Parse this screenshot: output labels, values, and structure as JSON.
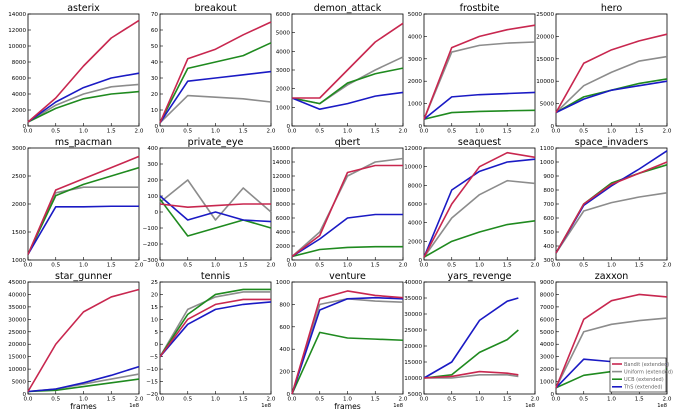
{
  "colors": {
    "bandit": "#c8274f",
    "uniform": "#8c8c8c",
    "ucb": "#1f8a1f",
    "ths": "#1a1ac4"
  },
  "legend": [
    "Bandit (extended)",
    "Uniform (extended)",
    "UCB (extended)",
    "ThS (extended)"
  ],
  "chart_data": [
    {
      "type": "line",
      "title": "asterix",
      "x": [
        0,
        0.5,
        1.0,
        1.5,
        2.0
      ],
      "ylim": [
        0,
        14000
      ],
      "yticks": [
        0,
        2000,
        4000,
        6000,
        8000,
        10000,
        12000,
        14000
      ],
      "xlabel": "",
      "x_exponent": "",
      "series": [
        {
          "key": "bandit",
          "values": [
            500,
            3500,
            7500,
            11000,
            13200
          ]
        },
        {
          "key": "uniform",
          "values": [
            500,
            2600,
            4000,
            4900,
            5200
          ]
        },
        {
          "key": "ucb",
          "values": [
            500,
            2200,
            3400,
            4000,
            4300
          ]
        },
        {
          "key": "ths",
          "values": [
            500,
            3000,
            4800,
            6000,
            6600
          ]
        }
      ]
    },
    {
      "type": "line",
      "title": "breakout",
      "x": [
        0,
        0.5,
        1.0,
        1.5,
        2.0
      ],
      "ylim": [
        0,
        70
      ],
      "yticks": [
        0,
        10,
        20,
        30,
        40,
        50,
        60,
        70
      ],
      "xlabel": "",
      "x_exponent": "",
      "series": [
        {
          "key": "bandit",
          "values": [
            2,
            42,
            48,
            57,
            65
          ]
        },
        {
          "key": "uniform",
          "values": [
            2,
            19,
            18,
            17,
            15
          ]
        },
        {
          "key": "ucb",
          "values": [
            2,
            36,
            40,
            44,
            52
          ]
        },
        {
          "key": "ths",
          "values": [
            2,
            28,
            30,
            32,
            34
          ]
        }
      ]
    },
    {
      "type": "line",
      "title": "demon_attack",
      "x": [
        0,
        0.5,
        1.0,
        1.5,
        2.0
      ],
      "ylim": [
        0,
        6000
      ],
      "yticks": [
        0,
        1000,
        2000,
        3000,
        4000,
        5000,
        6000
      ],
      "xlabel": "",
      "x_exponent": "",
      "series": [
        {
          "key": "bandit",
          "values": [
            1500,
            1500,
            3000,
            4500,
            5500
          ]
        },
        {
          "key": "uniform",
          "values": [
            1500,
            1200,
            2200,
            3000,
            3700
          ]
        },
        {
          "key": "ucb",
          "values": [
            1500,
            1200,
            2300,
            2800,
            3100
          ]
        },
        {
          "key": "ths",
          "values": [
            1500,
            900,
            1200,
            1600,
            1800
          ]
        }
      ]
    },
    {
      "type": "line",
      "title": "frostbite",
      "x": [
        0,
        0.5,
        1.0,
        1.5,
        2.0
      ],
      "ylim": [
        0,
        5000
      ],
      "yticks": [
        0,
        1000,
        2000,
        3000,
        4000,
        5000
      ],
      "xlabel": "",
      "x_exponent": "",
      "series": [
        {
          "key": "bandit",
          "values": [
            300,
            3500,
            4000,
            4300,
            4500
          ]
        },
        {
          "key": "uniform",
          "values": [
            300,
            3300,
            3600,
            3700,
            3750
          ]
        },
        {
          "key": "ucb",
          "values": [
            300,
            600,
            650,
            680,
            700
          ]
        },
        {
          "key": "ths",
          "values": [
            300,
            1300,
            1400,
            1450,
            1500
          ]
        }
      ]
    },
    {
      "type": "line",
      "title": "hero",
      "x": [
        0,
        0.5,
        1.0,
        1.5,
        2.0
      ],
      "ylim": [
        0,
        25000
      ],
      "yticks": [
        0,
        5000,
        10000,
        15000,
        20000,
        25000
      ],
      "xlabel": "",
      "x_exponent": "",
      "series": [
        {
          "key": "bandit",
          "values": [
            3000,
            14000,
            17000,
            19000,
            20500
          ]
        },
        {
          "key": "uniform",
          "values": [
            3000,
            9000,
            12000,
            14500,
            15500
          ]
        },
        {
          "key": "ucb",
          "values": [
            3000,
            6500,
            8000,
            9500,
            10500
          ]
        },
        {
          "key": "ths",
          "values": [
            3000,
            6000,
            8000,
            9000,
            10000
          ]
        }
      ]
    },
    {
      "type": "line",
      "title": "ms_pacman",
      "x": [
        0,
        0.5,
        1.0,
        1.5,
        2.0
      ],
      "ylim": [
        1000,
        3000
      ],
      "yticks": [
        1000,
        1500,
        2000,
        2500,
        3000
      ],
      "xlabel": "",
      "x_exponent": "",
      "series": [
        {
          "key": "bandit",
          "values": [
            1100,
            2250,
            2450,
            2650,
            2850
          ]
        },
        {
          "key": "uniform",
          "values": [
            1100,
            2200,
            2300,
            2300,
            2300
          ]
        },
        {
          "key": "ucb",
          "values": [
            1100,
            2150,
            2350,
            2500,
            2650
          ]
        },
        {
          "key": "ths",
          "values": [
            1100,
            1950,
            1950,
            1960,
            1960
          ]
        }
      ]
    },
    {
      "type": "line",
      "title": "private_eye",
      "x": [
        0,
        0.5,
        1.0,
        1.5,
        2.0
      ],
      "ylim": [
        -300,
        400
      ],
      "yticks": [
        -300,
        -200,
        -100,
        0,
        100,
        200,
        300,
        400
      ],
      "xlabel": "",
      "x_exponent": "",
      "series": [
        {
          "key": "bandit",
          "values": [
            50,
            30,
            40,
            50,
            50
          ]
        },
        {
          "key": "uniform",
          "values": [
            60,
            200,
            -50,
            150,
            0
          ]
        },
        {
          "key": "ucb",
          "values": [
            80,
            -150,
            -100,
            -50,
            -100
          ]
        },
        {
          "key": "ths",
          "values": [
            100,
            -50,
            0,
            -50,
            -60
          ]
        }
      ]
    },
    {
      "type": "line",
      "title": "qbert",
      "x": [
        0,
        0.5,
        1.0,
        1.5,
        2.0
      ],
      "ylim": [
        0,
        16000
      ],
      "yticks": [
        0,
        2000,
        4000,
        6000,
        8000,
        10000,
        12000,
        14000,
        16000
      ],
      "xlabel": "",
      "x_exponent": "",
      "series": [
        {
          "key": "bandit",
          "values": [
            500,
            3500,
            12500,
            13500,
            13500
          ]
        },
        {
          "key": "uniform",
          "values": [
            500,
            4000,
            12000,
            14000,
            14500
          ]
        },
        {
          "key": "ucb",
          "values": [
            500,
            1500,
            1800,
            1900,
            1900
          ]
        },
        {
          "key": "ths",
          "values": [
            500,
            3000,
            6000,
            6500,
            6500
          ]
        }
      ]
    },
    {
      "type": "line",
      "title": "seaquest",
      "x": [
        0,
        0.5,
        1.0,
        1.5,
        2.0
      ],
      "ylim": [
        0,
        12000
      ],
      "yticks": [
        0,
        2000,
        4000,
        6000,
        8000,
        10000,
        12000
      ],
      "xlabel": "",
      "x_exponent": "",
      "series": [
        {
          "key": "bandit",
          "values": [
            300,
            6000,
            10000,
            11500,
            11000
          ]
        },
        {
          "key": "uniform",
          "values": [
            300,
            4500,
            7000,
            8500,
            8200
          ]
        },
        {
          "key": "ucb",
          "values": [
            300,
            2000,
            3000,
            3800,
            4200
          ]
        },
        {
          "key": "ths",
          "values": [
            300,
            7500,
            9500,
            10500,
            10800
          ]
        }
      ]
    },
    {
      "type": "line",
      "title": "space_invaders",
      "x": [
        0,
        0.5,
        1.0,
        1.5,
        2.0
      ],
      "ylim": [
        300,
        1100
      ],
      "yticks": [
        300,
        400,
        500,
        600,
        700,
        800,
        900,
        1000,
        1100
      ],
      "xlabel": "",
      "x_exponent": "",
      "series": [
        {
          "key": "bandit",
          "values": [
            350,
            700,
            840,
            920,
            1000
          ]
        },
        {
          "key": "uniform",
          "values": [
            350,
            650,
            710,
            750,
            780
          ]
        },
        {
          "key": "ucb",
          "values": [
            350,
            700,
            850,
            920,
            980
          ]
        },
        {
          "key": "ths",
          "values": [
            350,
            690,
            830,
            950,
            1080
          ]
        }
      ]
    },
    {
      "type": "line",
      "title": "star_gunner",
      "x": [
        0,
        0.5,
        1.0,
        1.5,
        2.0
      ],
      "ylim": [
        0,
        45000
      ],
      "yticks": [
        0,
        5000,
        10000,
        15000,
        20000,
        25000,
        30000,
        35000,
        40000,
        45000
      ],
      "xlabel": "frames",
      "x_exponent": "1e8",
      "series": [
        {
          "key": "bandit",
          "values": [
            1000,
            20000,
            33000,
            39000,
            42000
          ]
        },
        {
          "key": "uniform",
          "values": [
            1000,
            2000,
            4000,
            6000,
            8000
          ]
        },
        {
          "key": "ucb",
          "values": [
            1000,
            1500,
            3000,
            4500,
            6000
          ]
        },
        {
          "key": "ths",
          "values": [
            1000,
            2000,
            4500,
            7500,
            11000
          ]
        }
      ]
    },
    {
      "type": "line",
      "title": "tennis",
      "x": [
        0,
        0.5,
        1.0,
        1.5,
        2.0
      ],
      "ylim": [
        -20,
        25
      ],
      "yticks": [
        -20,
        -15,
        -10,
        -5,
        0,
        5,
        10,
        15,
        20,
        25
      ],
      "xlabel": "",
      "x_exponent": "1e8",
      "series": [
        {
          "key": "bandit",
          "values": [
            -5,
            10,
            16,
            18,
            18
          ]
        },
        {
          "key": "uniform",
          "values": [
            -5,
            14,
            19,
            21,
            21
          ]
        },
        {
          "key": "ucb",
          "values": [
            -5,
            12,
            20,
            22,
            22
          ]
        },
        {
          "key": "ths",
          "values": [
            -5,
            8,
            14,
            16,
            17
          ]
        }
      ]
    },
    {
      "type": "line",
      "title": "venture",
      "x": [
        0,
        0.5,
        1.0,
        1.5,
        2.0
      ],
      "ylim": [
        0,
        1000
      ],
      "yticks": [
        0,
        200,
        400,
        600,
        800,
        1000
      ],
      "xlabel": "frames",
      "x_exponent": "1e8",
      "series": [
        {
          "key": "bandit",
          "values": [
            0,
            850,
            920,
            880,
            860
          ]
        },
        {
          "key": "uniform",
          "values": [
            0,
            800,
            850,
            830,
            820
          ]
        },
        {
          "key": "ucb",
          "values": [
            0,
            550,
            500,
            490,
            480
          ]
        },
        {
          "key": "ths",
          "values": [
            0,
            750,
            850,
            860,
            850
          ]
        }
      ]
    },
    {
      "type": "line",
      "title": "yars_revenge",
      "x": [
        0,
        0.5,
        1.0,
        1.5,
        1.7
      ],
      "ylim": [
        5000,
        40000
      ],
      "yticks": [
        5000,
        10000,
        15000,
        20000,
        25000,
        30000,
        35000,
        40000
      ],
      "xlabel": "",
      "x_exponent": "1e8",
      "series": [
        {
          "key": "bandit",
          "values": [
            10000,
            10500,
            12000,
            11500,
            11000
          ]
        },
        {
          "key": "uniform",
          "values": [
            10000,
            10000,
            11000,
            11000,
            10500
          ]
        },
        {
          "key": "ucb",
          "values": [
            10000,
            11000,
            18000,
            22000,
            25000
          ]
        },
        {
          "key": "ths",
          "values": [
            10000,
            15000,
            28000,
            34000,
            35000
          ]
        }
      ]
    },
    {
      "type": "line",
      "title": "zaxxon",
      "x": [
        0,
        0.5,
        1.0,
        1.5,
        2.0
      ],
      "ylim": [
        0,
        9000
      ],
      "yticks": [
        0,
        1000,
        2000,
        3000,
        4000,
        5000,
        6000,
        7000,
        8000,
        9000
      ],
      "xlabel": "",
      "x_exponent": "1e8",
      "series": [
        {
          "key": "bandit",
          "values": [
            500,
            6000,
            7500,
            8000,
            7800
          ]
        },
        {
          "key": "uniform",
          "values": [
            500,
            5000,
            5600,
            5900,
            6100
          ]
        },
        {
          "key": "ucb",
          "values": [
            500,
            1500,
            1800,
            2000,
            2000
          ]
        },
        {
          "key": "ths",
          "values": [
            500,
            2800,
            2600,
            2500,
            2400
          ]
        }
      ]
    }
  ]
}
